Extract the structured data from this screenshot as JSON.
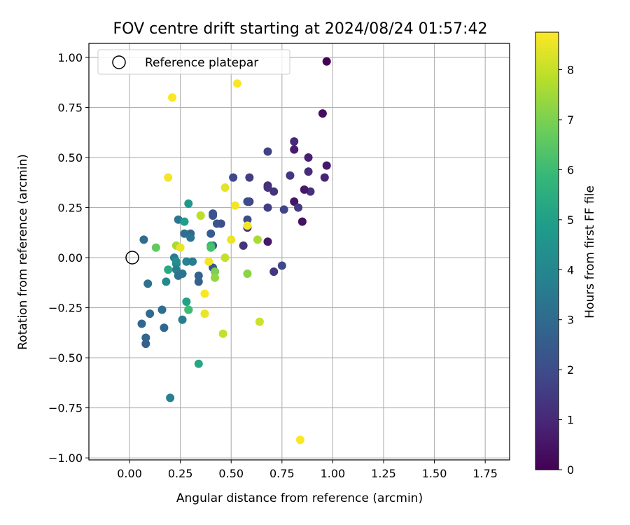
{
  "chart_data": {
    "type": "scatter",
    "title": "FOV centre drift starting at 2024/08/24 01:57:42",
    "xlabel": "Angular distance from reference (arcmin)",
    "ylabel": "Rotation from reference (arcmin)",
    "xlim": [
      -0.2,
      1.87
    ],
    "ylim": [
      -1.01,
      1.07
    ],
    "x_ticks": [
      "0.00",
      "0.25",
      "0.50",
      "0.75",
      "1.00",
      "1.25",
      "1.50",
      "1.75"
    ],
    "y_ticks": [
      "−1.00",
      "−0.75",
      "−0.50",
      "−0.25",
      "0.00",
      "0.25",
      "0.50",
      "0.75",
      "1.00"
    ],
    "grid": true,
    "legend": {
      "placement": "top-left",
      "label": "Reference platepar"
    },
    "reference_point": {
      "x": 0.0,
      "y": 0.0
    },
    "colorbar": {
      "label": "Hours from first FF file",
      "range": [
        0,
        8.75
      ],
      "ticks": [
        "0",
        "1",
        "2",
        "3",
        "4",
        "5",
        "6",
        "7",
        "8"
      ],
      "colormap": "viridis"
    },
    "points": [
      {
        "x": 0.97,
        "y": 0.98,
        "h": 0.0
      },
      {
        "x": 0.95,
        "y": 0.72,
        "h": 0.3
      },
      {
        "x": 0.97,
        "y": 0.46,
        "h": 0.6
      },
      {
        "x": 0.96,
        "y": 0.4,
        "h": 0.9
      },
      {
        "x": 0.88,
        "y": 0.5,
        "h": 0.8
      },
      {
        "x": 0.81,
        "y": 0.58,
        "h": 1.0
      },
      {
        "x": 0.81,
        "y": 0.54,
        "h": 0.7
      },
      {
        "x": 0.88,
        "y": 0.43,
        "h": 1.1
      },
      {
        "x": 0.89,
        "y": 0.33,
        "h": 1.2
      },
      {
        "x": 0.86,
        "y": 0.34,
        "h": 0.6
      },
      {
        "x": 0.81,
        "y": 0.28,
        "h": 0.5
      },
      {
        "x": 0.83,
        "y": 0.25,
        "h": 1.5
      },
      {
        "x": 0.85,
        "y": 0.18,
        "h": 0.4
      },
      {
        "x": 0.79,
        "y": 0.41,
        "h": 1.4
      },
      {
        "x": 0.76,
        "y": 0.24,
        "h": 1.8
      },
      {
        "x": 0.71,
        "y": 0.33,
        "h": 1.3
      },
      {
        "x": 0.68,
        "y": 0.36,
        "h": 1.1
      },
      {
        "x": 0.68,
        "y": 0.35,
        "h": 1.3
      },
      {
        "x": 0.68,
        "y": 0.25,
        "h": 1.6
      },
      {
        "x": 0.68,
        "y": 0.53,
        "h": 1.7
      },
      {
        "x": 0.68,
        "y": 0.08,
        "h": 0.6
      },
      {
        "x": 0.71,
        "y": -0.07,
        "h": 1.4
      },
      {
        "x": 0.75,
        "y": -0.04,
        "h": 1.9
      },
      {
        "x": 0.59,
        "y": 0.4,
        "h": 1.6
      },
      {
        "x": 0.59,
        "y": 0.28,
        "h": 1.7
      },
      {
        "x": 0.58,
        "y": 0.28,
        "h": 2.0
      },
      {
        "x": 0.58,
        "y": 0.19,
        "h": 2.0
      },
      {
        "x": 0.58,
        "y": 0.15,
        "h": 1.2
      },
      {
        "x": 0.56,
        "y": 0.06,
        "h": 1.3
      },
      {
        "x": 0.51,
        "y": 0.4,
        "h": 1.9
      },
      {
        "x": 0.45,
        "y": 0.17,
        "h": 2.0
      },
      {
        "x": 0.43,
        "y": 0.17,
        "h": 2.3
      },
      {
        "x": 0.41,
        "y": 0.22,
        "h": 2.2
      },
      {
        "x": 0.41,
        "y": 0.21,
        "h": 2.3
      },
      {
        "x": 0.4,
        "y": 0.12,
        "h": 2.5
      },
      {
        "x": 0.41,
        "y": 0.06,
        "h": 2.4
      },
      {
        "x": 0.41,
        "y": -0.05,
        "h": 2.3
      },
      {
        "x": 0.42,
        "y": -0.07,
        "h": 2.6
      },
      {
        "x": 0.34,
        "y": -0.09,
        "h": 2.7
      },
      {
        "x": 0.34,
        "y": -0.12,
        "h": 2.7
      },
      {
        "x": 0.3,
        "y": 0.12,
        "h": 3.0
      },
      {
        "x": 0.27,
        "y": 0.12,
        "h": 3.2
      },
      {
        "x": 0.3,
        "y": 0.1,
        "h": 3.4
      },
      {
        "x": 0.24,
        "y": 0.19,
        "h": 3.5
      },
      {
        "x": 0.22,
        "y": 0.0,
        "h": 3.6
      },
      {
        "x": 0.23,
        "y": -0.03,
        "h": 3.8
      },
      {
        "x": 0.23,
        "y": -0.06,
        "h": 3.7
      },
      {
        "x": 0.24,
        "y": -0.09,
        "h": 3.3
      },
      {
        "x": 0.26,
        "y": -0.08,
        "h": 3.4
      },
      {
        "x": 0.28,
        "y": -0.02,
        "h": 3.9
      },
      {
        "x": 0.31,
        "y": -0.02,
        "h": 3.6
      },
      {
        "x": 0.07,
        "y": 0.09,
        "h": 3.1
      },
      {
        "x": 0.09,
        "y": -0.13,
        "h": 3.3
      },
      {
        "x": 0.1,
        "y": -0.28,
        "h": 3.1
      },
      {
        "x": 0.16,
        "y": -0.26,
        "h": 3.2
      },
      {
        "x": 0.17,
        "y": -0.35,
        "h": 2.9
      },
      {
        "x": 0.06,
        "y": -0.33,
        "h": 2.9
      },
      {
        "x": 0.08,
        "y": -0.4,
        "h": 2.9
      },
      {
        "x": 0.08,
        "y": -0.43,
        "h": 2.7
      },
      {
        "x": 0.26,
        "y": -0.31,
        "h": 3.7
      },
      {
        "x": 0.2,
        "y": -0.7,
        "h": 3.8
      },
      {
        "x": 0.18,
        "y": -0.12,
        "h": 4.1
      },
      {
        "x": 0.23,
        "y": -0.02,
        "h": 4.3
      },
      {
        "x": 0.29,
        "y": 0.27,
        "h": 4.6
      },
      {
        "x": 0.27,
        "y": 0.18,
        "h": 4.9
      },
      {
        "x": 0.29,
        "y": -0.26,
        "h": 4.6
      },
      {
        "x": 0.28,
        "y": -0.22,
        "h": 5.0
      },
      {
        "x": 0.34,
        "y": -0.53,
        "h": 5.2
      },
      {
        "x": 0.19,
        "y": -0.06,
        "h": 5.3
      },
      {
        "x": 0.4,
        "y": 0.06,
        "h": 5.8
      },
      {
        "x": 0.4,
        "y": 0.05,
        "h": 6.2
      },
      {
        "x": 0.29,
        "y": -0.26,
        "h": 6.0
      },
      {
        "x": 0.13,
        "y": 0.05,
        "h": 6.6
      },
      {
        "x": 0.35,
        "y": 0.21,
        "h": 6.9
      },
      {
        "x": 0.42,
        "y": -0.07,
        "h": 7.0
      },
      {
        "x": 0.42,
        "y": -0.1,
        "h": 7.3
      },
      {
        "x": 0.58,
        "y": -0.08,
        "h": 7.2
      },
      {
        "x": 0.63,
        "y": 0.09,
        "h": 7.6
      },
      {
        "x": 0.23,
        "y": 0.06,
        "h": 7.6
      },
      {
        "x": 0.35,
        "y": 0.21,
        "h": 7.9
      },
      {
        "x": 0.47,
        "y": 0.0,
        "h": 8.0
      },
      {
        "x": 0.46,
        "y": -0.38,
        "h": 8.0
      },
      {
        "x": 0.64,
        "y": -0.32,
        "h": 8.1
      },
      {
        "x": 0.25,
        "y": 0.05,
        "h": 8.5
      },
      {
        "x": 0.39,
        "y": -0.02,
        "h": 8.6
      },
      {
        "x": 0.37,
        "y": -0.18,
        "h": 8.7
      },
      {
        "x": 0.37,
        "y": -0.28,
        "h": 8.5
      },
      {
        "x": 0.5,
        "y": 0.09,
        "h": 8.5
      },
      {
        "x": 0.52,
        "y": 0.26,
        "h": 8.6
      },
      {
        "x": 0.47,
        "y": 0.35,
        "h": 8.4
      },
      {
        "x": 0.58,
        "y": 0.16,
        "h": 8.6
      },
      {
        "x": 0.19,
        "y": 0.4,
        "h": 8.6
      },
      {
        "x": 0.21,
        "y": 0.8,
        "h": 8.7
      },
      {
        "x": 0.53,
        "y": 0.87,
        "h": 8.7
      },
      {
        "x": 0.84,
        "y": -0.91,
        "h": 8.7
      }
    ]
  }
}
